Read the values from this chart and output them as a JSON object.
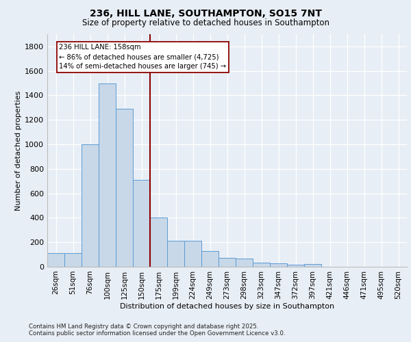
{
  "title_line1": "236, HILL LANE, SOUTHAMPTON, SO15 7NT",
  "title_line2": "Size of property relative to detached houses in Southampton",
  "xlabel": "Distribution of detached houses by size in Southampton",
  "ylabel": "Number of detached properties",
  "categories": [
    "26sqm",
    "51sqm",
    "76sqm",
    "100sqm",
    "125sqm",
    "150sqm",
    "175sqm",
    "199sqm",
    "224sqm",
    "249sqm",
    "273sqm",
    "298sqm",
    "323sqm",
    "347sqm",
    "372sqm",
    "397sqm",
    "421sqm",
    "446sqm",
    "471sqm",
    "495sqm",
    "520sqm"
  ],
  "values": [
    110,
    110,
    1000,
    1500,
    1290,
    710,
    400,
    215,
    215,
    130,
    70,
    65,
    35,
    30,
    15,
    20,
    0,
    0,
    0,
    0,
    0
  ],
  "bar_color": "#c8d8e8",
  "bar_edge_color": "#5b9bd5",
  "background_color": "#e8eef5",
  "grid_color": "#ffffff",
  "vline_color": "#8b0000",
  "annotation_title": "236 HILL LANE: 158sqm",
  "annotation_line1": "← 86% of detached houses are smaller (4,725)",
  "annotation_line2": "14% of semi-detached houses are larger (745) →",
  "annotation_box_color": "#ffffff",
  "annotation_box_edge": "#8b0000",
  "ylim": [
    0,
    1900
  ],
  "yticks": [
    0,
    200,
    400,
    600,
    800,
    1000,
    1200,
    1400,
    1600,
    1800
  ],
  "footer_line1": "Contains HM Land Registry data © Crown copyright and database right 2025.",
  "footer_line2": "Contains public sector information licensed under the Open Government Licence v3.0."
}
